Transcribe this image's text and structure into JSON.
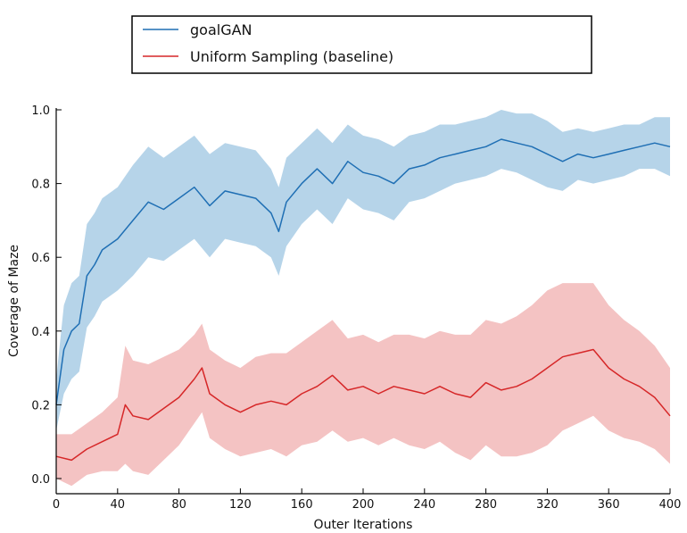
{
  "chart_data": {
    "type": "line",
    "title": "",
    "xlabel": "Outer Iterations",
    "ylabel": "Coverage of Maze",
    "xlim": [
      0,
      400
    ],
    "ylim": [
      0.0,
      1.0
    ],
    "xticks": [
      0,
      40,
      80,
      120,
      160,
      200,
      240,
      280,
      320,
      360,
      400
    ],
    "yticks": [
      0.0,
      0.2,
      0.4,
      0.6,
      0.8,
      1.0
    ],
    "xtick_labels": [
      "0",
      "40",
      "80",
      "120",
      "160",
      "200",
      "240",
      "280",
      "320",
      "360",
      "400"
    ],
    "ytick_labels": [
      "0.0",
      "0.2",
      "0.4",
      "0.6",
      "0.8",
      "1.0"
    ],
    "legend_position": "top-center, above plot",
    "series": [
      {
        "name": "goalGAN",
        "color": "#1f6fb4",
        "band_color": "#a9cce5",
        "x": [
          0,
          5,
          10,
          15,
          20,
          25,
          30,
          40,
          50,
          60,
          70,
          80,
          90,
          100,
          110,
          120,
          130,
          140,
          145,
          150,
          160,
          170,
          180,
          190,
          200,
          210,
          220,
          230,
          240,
          250,
          260,
          270,
          280,
          290,
          300,
          310,
          320,
          330,
          340,
          350,
          360,
          370,
          380,
          390,
          400
        ],
        "values": [
          0.2,
          0.35,
          0.4,
          0.42,
          0.55,
          0.58,
          0.62,
          0.65,
          0.7,
          0.75,
          0.73,
          0.76,
          0.79,
          0.74,
          0.78,
          0.77,
          0.76,
          0.72,
          0.67,
          0.75,
          0.8,
          0.84,
          0.8,
          0.86,
          0.83,
          0.82,
          0.8,
          0.84,
          0.85,
          0.87,
          0.88,
          0.89,
          0.9,
          0.92,
          0.91,
          0.9,
          0.88,
          0.86,
          0.88,
          0.87,
          0.88,
          0.89,
          0.9,
          0.91,
          0.9
        ],
        "band": [
          0.07,
          0.12,
          0.13,
          0.13,
          0.14,
          0.14,
          0.14,
          0.14,
          0.15,
          0.15,
          0.14,
          0.14,
          0.14,
          0.14,
          0.13,
          0.13,
          0.13,
          0.12,
          0.12,
          0.12,
          0.11,
          0.11,
          0.11,
          0.1,
          0.1,
          0.1,
          0.1,
          0.09,
          0.09,
          0.09,
          0.08,
          0.08,
          0.08,
          0.08,
          0.08,
          0.09,
          0.09,
          0.08,
          0.07,
          0.07,
          0.07,
          0.07,
          0.06,
          0.07,
          0.08
        ]
      },
      {
        "name": "Uniform Sampling (baseline)",
        "color": "#d62728",
        "band_color": "#f2b8b9",
        "x": [
          0,
          10,
          20,
          30,
          40,
          45,
          50,
          60,
          70,
          80,
          90,
          95,
          100,
          110,
          120,
          130,
          140,
          150,
          160,
          170,
          180,
          190,
          200,
          210,
          220,
          230,
          240,
          250,
          260,
          270,
          280,
          290,
          300,
          310,
          320,
          330,
          340,
          350,
          360,
          370,
          380,
          390,
          400
        ],
        "values": [
          0.06,
          0.05,
          0.08,
          0.1,
          0.12,
          0.2,
          0.17,
          0.16,
          0.19,
          0.22,
          0.27,
          0.3,
          0.23,
          0.2,
          0.18,
          0.2,
          0.21,
          0.2,
          0.23,
          0.25,
          0.28,
          0.24,
          0.25,
          0.23,
          0.25,
          0.24,
          0.23,
          0.25,
          0.23,
          0.22,
          0.26,
          0.24,
          0.25,
          0.27,
          0.3,
          0.33,
          0.34,
          0.35,
          0.3,
          0.27,
          0.25,
          0.22,
          0.17
        ],
        "band": [
          0.06,
          0.07,
          0.07,
          0.08,
          0.1,
          0.16,
          0.15,
          0.15,
          0.14,
          0.13,
          0.12,
          0.12,
          0.12,
          0.12,
          0.12,
          0.13,
          0.13,
          0.14,
          0.14,
          0.15,
          0.15,
          0.14,
          0.14,
          0.14,
          0.14,
          0.15,
          0.15,
          0.15,
          0.16,
          0.17,
          0.17,
          0.18,
          0.19,
          0.2,
          0.21,
          0.2,
          0.19,
          0.18,
          0.17,
          0.16,
          0.15,
          0.14,
          0.13
        ]
      }
    ]
  }
}
